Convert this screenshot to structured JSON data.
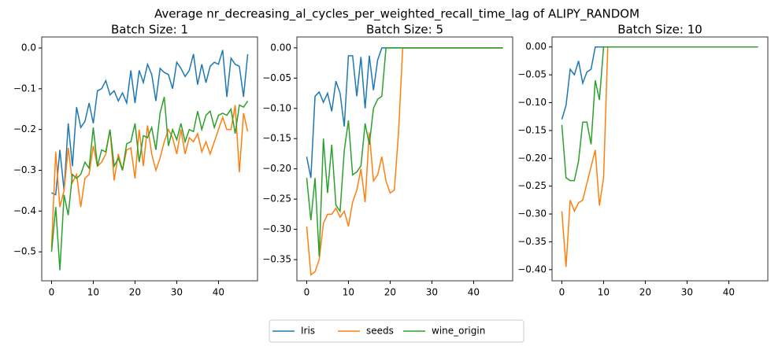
{
  "title": "Average nr_decreasing_al_cycles_per_weighted_recall_time_lag of ALIPY_RANDOM",
  "chart_data": [
    {
      "type": "line",
      "title": "Batch Size: 1",
      "x": [
        0,
        1,
        2,
        3,
        4,
        5,
        6,
        7,
        8,
        9,
        10,
        11,
        12,
        13,
        14,
        15,
        16,
        17,
        18,
        19,
        20,
        21,
        22,
        23,
        24,
        25,
        26,
        27,
        28,
        29,
        30,
        31,
        32,
        33,
        34,
        35,
        36,
        37,
        38,
        39,
        40,
        41,
        42,
        43,
        44,
        45,
        46,
        47
      ],
      "xlim": [
        -2.35,
        49.35
      ],
      "xticks": [
        0,
        10,
        20,
        30,
        40
      ],
      "ylim": [
        -0.571,
        0.027
      ],
      "yticks": [
        {
          "value": -0.5,
          "label": "−0.5"
        },
        {
          "value": -0.4,
          "label": "−0.4"
        },
        {
          "value": -0.3,
          "label": "−0.3"
        },
        {
          "value": -0.2,
          "label": "−0.2"
        },
        {
          "value": -0.1,
          "label": "−0.1"
        },
        {
          "value": 0,
          "label": "0.0"
        }
      ],
      "series": [
        {
          "name": "Iris",
          "color": "#1f77b4",
          "values": [
            -0.355,
            -0.36,
            -0.25,
            -0.35,
            -0.185,
            -0.29,
            -0.145,
            -0.195,
            -0.18,
            -0.135,
            -0.185,
            -0.105,
            -0.1,
            -0.08,
            -0.115,
            -0.105,
            -0.13,
            -0.11,
            -0.135,
            -0.055,
            -0.135,
            -0.055,
            -0.085,
            -0.04,
            -0.065,
            -0.13,
            -0.05,
            -0.06,
            -0.065,
            -0.1,
            -0.035,
            -0.05,
            -0.07,
            -0.055,
            -0.015,
            -0.09,
            -0.04,
            -0.085,
            -0.045,
            -0.035,
            -0.04,
            -0.005,
            -0.12,
            -0.025,
            -0.04,
            -0.045,
            -0.12,
            -0.015
          ]
        },
        {
          "name": "seeds",
          "color": "#ff7f0e",
          "values": [
            -0.49,
            -0.255,
            -0.39,
            -0.35,
            -0.245,
            -0.33,
            -0.31,
            -0.39,
            -0.32,
            -0.31,
            -0.24,
            -0.29,
            -0.28,
            -0.26,
            -0.2,
            -0.325,
            -0.26,
            -0.3,
            -0.25,
            -0.245,
            -0.32,
            -0.2,
            -0.29,
            -0.19,
            -0.26,
            -0.3,
            -0.27,
            -0.23,
            -0.2,
            -0.22,
            -0.26,
            -0.2,
            -0.26,
            -0.22,
            -0.23,
            -0.21,
            -0.255,
            -0.23,
            -0.26,
            -0.23,
            -0.2,
            -0.17,
            -0.2,
            -0.2,
            -0.14,
            -0.305,
            -0.16,
            -0.205
          ]
        },
        {
          "name": "wine_origin",
          "color": "#2ca02c",
          "values": [
            -0.5,
            -0.39,
            -0.545,
            -0.36,
            -0.41,
            -0.31,
            -0.32,
            -0.31,
            -0.28,
            -0.295,
            -0.195,
            -0.29,
            -0.25,
            -0.255,
            -0.2,
            -0.29,
            -0.27,
            -0.3,
            -0.235,
            -0.23,
            -0.185,
            -0.28,
            -0.215,
            -0.22,
            -0.195,
            -0.25,
            -0.16,
            -0.12,
            -0.24,
            -0.2,
            -0.225,
            -0.185,
            -0.23,
            -0.2,
            -0.205,
            -0.155,
            -0.2,
            -0.165,
            -0.155,
            -0.195,
            -0.165,
            -0.16,
            -0.165,
            -0.15,
            -0.21,
            -0.14,
            -0.145,
            -0.13
          ]
        }
      ]
    },
    {
      "type": "line",
      "title": "Batch Size: 5",
      "x": [
        0,
        1,
        2,
        3,
        4,
        5,
        6,
        7,
        8,
        9,
        10,
        11,
        12,
        13,
        14,
        15,
        16,
        17,
        18,
        19,
        20,
        21,
        22,
        23,
        24,
        25,
        26,
        27,
        28,
        29,
        30,
        31,
        32,
        33,
        34,
        35,
        36,
        37,
        38,
        39,
        40,
        41,
        42,
        43,
        44,
        45,
        46,
        47
      ],
      "xlim": [
        -2.35,
        49.35
      ],
      "xticks": [
        0,
        10,
        20,
        30,
        40
      ],
      "ylim": [
        -0.385,
        0.018
      ],
      "yticks": [
        {
          "value": -0.35,
          "label": "−0.35"
        },
        {
          "value": -0.3,
          "label": "−0.30"
        },
        {
          "value": -0.25,
          "label": "−0.25"
        },
        {
          "value": -0.2,
          "label": "−0.20"
        },
        {
          "value": -0.15,
          "label": "−0.15"
        },
        {
          "value": -0.1,
          "label": "−0.10"
        },
        {
          "value": -0.05,
          "label": "−0.05"
        },
        {
          "value": 0,
          "label": "0.00"
        }
      ],
      "series": [
        {
          "name": "Iris",
          "color": "#1f77b4",
          "values": [
            -0.18,
            -0.215,
            -0.08,
            -0.073,
            -0.09,
            -0.075,
            -0.105,
            -0.055,
            -0.075,
            -0.13,
            -0.013,
            -0.013,
            -0.08,
            -0.015,
            -0.1,
            -0.013,
            -0.07,
            -0.02,
            0,
            0,
            0,
            0,
            0,
            0,
            0,
            0,
            0,
            0,
            0,
            0,
            0,
            0,
            0,
            0,
            0,
            0,
            0,
            0,
            0,
            0,
            0,
            0,
            0,
            0,
            0,
            0,
            0,
            0
          ]
        },
        {
          "name": "seeds",
          "color": "#ff7f0e",
          "values": [
            -0.295,
            -0.375,
            -0.37,
            -0.35,
            -0.29,
            -0.275,
            -0.275,
            -0.265,
            -0.28,
            -0.27,
            -0.295,
            -0.255,
            -0.235,
            -0.2,
            -0.255,
            -0.14,
            -0.22,
            -0.21,
            -0.18,
            -0.22,
            -0.24,
            -0.235,
            -0.14,
            0,
            0,
            0,
            0,
            0,
            0,
            0,
            0,
            0,
            0,
            0,
            0,
            0,
            0,
            0,
            0,
            0,
            0,
            0,
            0,
            0,
            0,
            0,
            0,
            0
          ]
        },
        {
          "name": "wine_origin",
          "color": "#2ca02c",
          "values": [
            -0.215,
            -0.285,
            -0.215,
            -0.345,
            -0.15,
            -0.24,
            -0.16,
            -0.26,
            -0.27,
            -0.17,
            -0.12,
            -0.21,
            -0.205,
            -0.195,
            -0.125,
            -0.16,
            -0.1,
            -0.085,
            -0.08,
            0,
            0,
            0,
            0,
            0,
            0,
            0,
            0,
            0,
            0,
            0,
            0,
            0,
            0,
            0,
            0,
            0,
            0,
            0,
            0,
            0,
            0,
            0,
            0,
            0,
            0,
            0,
            0,
            0
          ]
        }
      ]
    },
    {
      "type": "line",
      "title": "Batch Size: 10",
      "x": [
        0,
        1,
        2,
        3,
        4,
        5,
        6,
        7,
        8,
        9,
        10,
        11,
        12,
        13,
        14,
        15,
        16,
        17,
        18,
        19,
        20,
        21,
        22,
        23,
        24,
        25,
        26,
        27,
        28,
        29,
        30,
        31,
        32,
        33,
        34,
        35,
        36,
        37,
        38,
        39,
        40,
        41,
        42,
        43,
        44,
        45,
        46,
        47
      ],
      "xlim": [
        -2.35,
        49.35
      ],
      "xticks": [
        0,
        10,
        20,
        30,
        40
      ],
      "ylim": [
        -0.42,
        0.018
      ],
      "yticks": [
        {
          "value": -0.4,
          "label": "−0.40"
        },
        {
          "value": -0.35,
          "label": "−0.35"
        },
        {
          "value": -0.3,
          "label": "−0.30"
        },
        {
          "value": -0.25,
          "label": "−0.25"
        },
        {
          "value": -0.2,
          "label": "−0.20"
        },
        {
          "value": -0.15,
          "label": "−0.15"
        },
        {
          "value": -0.1,
          "label": "−0.10"
        },
        {
          "value": -0.05,
          "label": "−0.05"
        },
        {
          "value": 0,
          "label": "0.00"
        }
      ],
      "series": [
        {
          "name": "Iris",
          "color": "#1f77b4",
          "values": [
            -0.13,
            -0.105,
            -0.04,
            -0.05,
            -0.025,
            -0.065,
            -0.045,
            -0.04,
            0,
            0,
            0,
            0,
            0,
            0,
            0,
            0,
            0,
            0,
            0,
            0,
            0,
            0,
            0,
            0,
            0,
            0,
            0,
            0,
            0,
            0,
            0,
            0,
            0,
            0,
            0,
            0,
            0,
            0,
            0,
            0,
            0,
            0,
            0,
            0,
            0,
            0,
            0,
            0
          ]
        },
        {
          "name": "seeds",
          "color": "#ff7f0e",
          "values": [
            -0.295,
            -0.395,
            -0.275,
            -0.295,
            -0.28,
            -0.275,
            -0.245,
            -0.215,
            -0.185,
            -0.285,
            -0.235,
            0,
            0,
            0,
            0,
            0,
            0,
            0,
            0,
            0,
            0,
            0,
            0,
            0,
            0,
            0,
            0,
            0,
            0,
            0,
            0,
            0,
            0,
            0,
            0,
            0,
            0,
            0,
            0,
            0,
            0,
            0,
            0,
            0,
            0,
            0,
            0,
            0
          ]
        },
        {
          "name": "wine_origin",
          "color": "#2ca02c",
          "values": [
            -0.14,
            -0.235,
            -0.24,
            -0.24,
            -0.205,
            -0.135,
            -0.135,
            -0.175,
            -0.06,
            -0.095,
            0,
            0,
            0,
            0,
            0,
            0,
            0,
            0,
            0,
            0,
            0,
            0,
            0,
            0,
            0,
            0,
            0,
            0,
            0,
            0,
            0,
            0,
            0,
            0,
            0,
            0,
            0,
            0,
            0,
            0,
            0,
            0,
            0,
            0,
            0,
            0,
            0,
            0
          ]
        }
      ]
    }
  ]
}
